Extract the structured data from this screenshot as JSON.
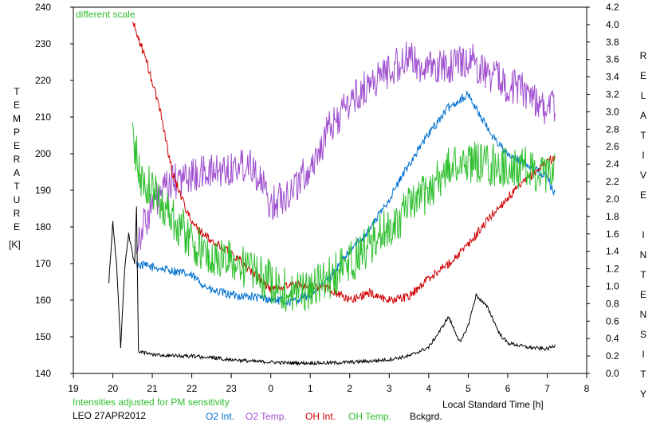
{
  "chart_data": {
    "type": "line",
    "annotation_top": "different scale",
    "annotation_bottom": "Intensities adjusted for PM sensitivity",
    "site_date": "LEO 27APR2012",
    "xlabel": "Local Standard Time [h]",
    "ylabel_left": "TEMPERATURE",
    "ylabel_left_unit": "[K]",
    "ylabel_right": "RELATIVE INTENSITY",
    "x_tick_labels": [
      "19",
      "20",
      "21",
      "22",
      "23",
      "0",
      "1",
      "2",
      "3",
      "4",
      "5",
      "6",
      "7",
      "8"
    ],
    "x_range": [
      19,
      8
    ],
    "y_left_range": [
      140,
      240
    ],
    "y_left_ticks": [
      140,
      150,
      160,
      170,
      180,
      190,
      200,
      210,
      220,
      230,
      240
    ],
    "y_right_range": [
      0.0,
      4.2
    ],
    "y_right_ticks": [
      "0.0",
      "0.2",
      "0.4",
      "0.6",
      "0.8",
      "1.0",
      "1.2",
      "1.4",
      "1.6",
      "1.8",
      "2.0",
      "2.2",
      "2.4",
      "2.6",
      "2.8",
      "3.0",
      "3.2",
      "3.4",
      "3.6",
      "3.8",
      "4.0",
      "4.2"
    ],
    "grid": false,
    "legend_position": "bottom",
    "series": [
      {
        "name": "O2 Int.",
        "color": "#0070d0",
        "axis": "right",
        "noise": 0.05,
        "x": [
          20.6,
          21.0,
          21.5,
          22.0,
          22.5,
          23.0,
          23.5,
          24.0,
          24.5,
          25.0,
          25.5,
          26.0,
          26.5,
          27.0,
          27.5,
          28.0,
          28.5,
          29.0,
          29.5,
          30.0,
          30.5,
          31.0,
          31.2
        ],
        "y": [
          1.25,
          1.22,
          1.18,
          1.12,
          0.95,
          0.9,
          0.88,
          0.85,
          0.82,
          0.9,
          1.1,
          1.4,
          1.65,
          2.0,
          2.4,
          2.75,
          3.05,
          3.2,
          2.8,
          2.5,
          2.4,
          2.25,
          2.05
        ]
      },
      {
        "name": "O2 Temp.",
        "color": "#a050d0",
        "axis": "left",
        "noise": 5,
        "x": [
          20.6,
          21.0,
          21.5,
          22.0,
          22.5,
          23.0,
          23.5,
          24.0,
          24.5,
          25.0,
          25.5,
          26.0,
          26.5,
          27.0,
          27.5,
          28.0,
          28.5,
          29.0,
          29.5,
          30.0,
          30.5,
          31.0,
          31.2
        ],
        "y": [
          176,
          186,
          192,
          194,
          195,
          196,
          198,
          186,
          190,
          196,
          207,
          214,
          219,
          223,
          226,
          223,
          224,
          226,
          222,
          219,
          217,
          212,
          213
        ]
      },
      {
        "name": "OH Int.",
        "color": "#d00000",
        "axis": "left",
        "noise": 1.2,
        "x": [
          20.5,
          20.8,
          21.2,
          21.5,
          22.0,
          22.5,
          23.0,
          23.5,
          24.0,
          24.5,
          25.0,
          25.5,
          26.0,
          26.5,
          27.0,
          27.5,
          28.0,
          28.5,
          29.0,
          29.5,
          30.0,
          30.5,
          31.0,
          31.2
        ],
        "y": [
          236,
          227,
          212,
          195,
          181,
          176,
          173,
          168,
          163,
          164,
          164,
          163,
          160,
          162,
          160,
          161,
          166,
          170,
          175,
          182,
          188,
          193,
          198,
          199
        ]
      },
      {
        "name": "OH Temp.",
        "color": "#30c030",
        "axis": "left",
        "noise": 6,
        "x": [
          20.5,
          20.7,
          21.0,
          21.5,
          22.0,
          22.5,
          23.0,
          23.5,
          24.0,
          24.5,
          25.0,
          25.5,
          26.0,
          26.5,
          27.0,
          27.5,
          28.0,
          28.5,
          29.0,
          29.5,
          30.0,
          30.5,
          31.0,
          31.2
        ],
        "y": [
          205,
          193,
          190,
          183,
          176,
          171,
          171,
          168,
          165,
          162,
          163,
          166,
          170,
          175,
          180,
          185,
          190,
          196,
          198,
          197,
          196,
          196,
          193,
          196
        ]
      },
      {
        "name": "Bckgrd.",
        "color": "#000000",
        "axis": "right",
        "noise": 0.02,
        "x": [
          19.9,
          20.0,
          20.1,
          20.2,
          20.3,
          20.4,
          20.55,
          20.6,
          20.65,
          21.0,
          21.5,
          22.0,
          22.5,
          23.0,
          23.5,
          24.0,
          24.5,
          25.0,
          25.5,
          26.0,
          26.5,
          27.0,
          27.5,
          28.0,
          28.3,
          28.5,
          28.8,
          29.0,
          29.2,
          29.5,
          29.8,
          30.0,
          30.5,
          31.0,
          31.2
        ],
        "y": [
          1.05,
          1.75,
          1.2,
          0.3,
          1.2,
          1.6,
          1.25,
          1.9,
          0.25,
          0.22,
          0.2,
          0.2,
          0.18,
          0.16,
          0.14,
          0.13,
          0.12,
          0.12,
          0.12,
          0.13,
          0.14,
          0.16,
          0.2,
          0.3,
          0.5,
          0.65,
          0.35,
          0.55,
          0.9,
          0.75,
          0.45,
          0.35,
          0.3,
          0.28,
          0.32
        ]
      }
    ]
  }
}
